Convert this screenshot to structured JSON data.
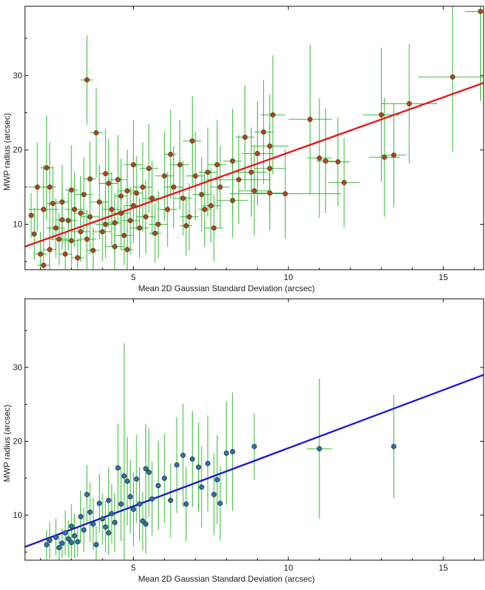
{
  "chart_data": [
    {
      "type": "scatter",
      "panel": "top",
      "xlabel": "Mean 2D Gaussian Standard Deviation (arcsec)",
      "ylabel": "MWP radius (arcsec)",
      "xlim": [
        1.5,
        16.3
      ],
      "ylim": [
        3.9,
        39.3
      ],
      "xticks": [
        5,
        10,
        15
      ],
      "yticks": [
        10,
        20,
        30
      ],
      "marker_color": "#c0392b",
      "marker_edge": "#3a5f10",
      "errorbar_color": "#2bb52b",
      "fit_color": "#e8141b",
      "fit_line": [
        [
          1.5,
          7.0
        ],
        [
          16.3,
          29.0
        ]
      ],
      "points": [
        [
          1.7,
          11.2,
          0,
          3.0
        ],
        [
          1.8,
          8.7,
          0,
          3.5
        ],
        [
          1.9,
          15.0,
          0.3,
          6.0
        ],
        [
          2.0,
          6.0,
          0.2,
          3.0
        ],
        [
          2.1,
          12.0,
          0.5,
          6.0
        ],
        [
          2.1,
          4.5,
          0.2,
          2.0
        ],
        [
          2.2,
          17.6,
          0.2,
          7.0
        ],
        [
          2.3,
          15.0,
          0.2,
          6.0
        ],
        [
          2.3,
          6.6,
          0.2,
          3.0
        ],
        [
          2.5,
          9.5,
          0.3,
          4.0
        ],
        [
          2.6,
          8.0,
          0.3,
          3.5
        ],
        [
          2.7,
          13.0,
          0.2,
          5.0
        ],
        [
          2.8,
          6.0,
          0.2,
          3.0
        ],
        [
          2.9,
          10.5,
          0.3,
          4.0
        ],
        [
          3.0,
          7.8,
          0.3,
          4.0
        ],
        [
          3.1,
          12.0,
          0.3,
          5.0
        ],
        [
          3.2,
          5.5,
          0.2,
          2.5
        ],
        [
          3.3,
          9.0,
          0.3,
          4.0
        ],
        [
          3.4,
          14.0,
          0.3,
          5.0
        ],
        [
          3.5,
          29.4,
          0.2,
          6.0
        ],
        [
          3.5,
          8.0,
          0.3,
          4.0
        ],
        [
          3.6,
          11.0,
          0.3,
          5.0
        ],
        [
          3.7,
          6.5,
          0.2,
          3.0
        ],
        [
          3.8,
          22.3,
          0.2,
          6.0
        ],
        [
          3.9,
          13.0,
          0.3,
          5.0
        ],
        [
          4.0,
          9.0,
          0.3,
          4.0
        ],
        [
          4.1,
          10.0,
          0.3,
          4.5
        ],
        [
          4.2,
          15.5,
          0.3,
          6.0
        ],
        [
          4.3,
          12.0,
          0.3,
          5.0
        ],
        [
          4.4,
          7.0,
          0.3,
          4.0
        ],
        [
          4.5,
          16.0,
          0.3,
          6.0
        ],
        [
          4.6,
          11.5,
          0.3,
          5.0
        ],
        [
          4.7,
          8.5,
          0.3,
          4.0
        ],
        [
          4.8,
          14.5,
          0.3,
          5.5
        ],
        [
          4.9,
          10.5,
          0.3,
          4.5
        ],
        [
          5.0,
          18.0,
          0.3,
          6.0
        ],
        [
          5.0,
          12.5,
          0.3,
          5.0
        ],
        [
          5.2,
          9.5,
          0.3,
          4.0
        ],
        [
          5.3,
          15.0,
          0.3,
          6.0
        ],
        [
          5.4,
          11.0,
          0.3,
          5.0
        ],
        [
          5.5,
          17.5,
          0.3,
          6.0
        ],
        [
          5.6,
          13.5,
          0.3,
          5.0
        ],
        [
          5.8,
          10.0,
          0.3,
          4.5
        ],
        [
          6.0,
          16.5,
          0.3,
          6.0
        ],
        [
          6.1,
          12.0,
          0.3,
          5.0
        ],
        [
          6.3,
          15.0,
          0.3,
          5.5
        ],
        [
          6.5,
          18.0,
          0.3,
          6.0
        ],
        [
          6.6,
          13.5,
          0.3,
          5.0
        ],
        [
          6.8,
          11.0,
          0.3,
          4.5
        ],
        [
          6.9,
          21.2,
          0.3,
          6.0
        ],
        [
          7.0,
          16.5,
          0.3,
          6.0
        ],
        [
          7.2,
          14.0,
          0.3,
          5.0
        ],
        [
          7.4,
          17.0,
          0.3,
          6.0
        ],
        [
          7.5,
          12.5,
          0.3,
          5.0
        ],
        [
          7.6,
          9.5,
          0.3,
          4.5
        ],
        [
          7.7,
          18.0,
          0.3,
          6.0
        ],
        [
          7.8,
          15.0,
          0.3,
          5.5
        ],
        [
          8.2,
          18.5,
          0.3,
          7.0
        ],
        [
          8.2,
          13.2,
          0.5,
          5.0
        ],
        [
          8.4,
          16.0,
          1.0,
          6.0
        ],
        [
          8.6,
          21.7,
          0.3,
          7.0
        ],
        [
          8.8,
          17.0,
          0.5,
          6.0
        ],
        [
          8.9,
          14.5,
          0.5,
          6.0
        ],
        [
          9.0,
          19.5,
          0.5,
          7.0
        ],
        [
          9.2,
          22.4,
          0.3,
          7.0
        ],
        [
          9.4,
          20.5,
          0.6,
          7.0
        ],
        [
          9.4,
          17.5,
          0.5,
          6.0
        ],
        [
          9.4,
          14.2,
          0.5,
          5.0
        ],
        [
          9.5,
          24.7,
          0.4,
          8.0
        ],
        [
          9.9,
          14.1,
          1.8,
          6.0
        ],
        [
          10.7,
          24.1,
          0.7,
          10.0
        ],
        [
          11.0,
          18.9,
          0.4,
          8.0
        ],
        [
          11.2,
          18.5,
          0.3,
          7.0
        ],
        [
          11.6,
          18.4,
          0.4,
          6.0
        ],
        [
          11.8,
          15.6,
          0.5,
          6.0
        ],
        [
          13.0,
          24.7,
          0.6,
          9.0
        ],
        [
          13.1,
          19.0,
          0.5,
          8.0
        ],
        [
          13.4,
          19.3,
          0.4,
          7.0
        ],
        [
          13.9,
          26.2,
          0.9,
          8.0
        ],
        [
          15.3,
          29.8,
          1.1,
          10.0
        ],
        [
          16.2,
          38.6,
          0.5,
          12.0
        ],
        [
          4.1,
          16.8,
          0.2,
          6.0
        ],
        [
          4.4,
          10.2,
          0.2,
          4.0
        ],
        [
          2.4,
          12.8,
          0.2,
          5.0
        ],
        [
          3.0,
          14.6,
          0.2,
          6.0
        ],
        [
          5.7,
          8.8,
          0.2,
          4.0
        ],
        [
          6.2,
          19.4,
          0.2,
          6.0
        ],
        [
          6.7,
          9.8,
          0.2,
          4.0
        ],
        [
          3.6,
          16.1,
          0.2,
          5.0
        ],
        [
          4.8,
          6.6,
          0.2,
          3.0
        ],
        [
          2.7,
          10.6,
          0.2,
          4.0
        ],
        [
          5.1,
          14.2,
          0.2,
          5.0
        ],
        [
          7.3,
          12.0,
          0.2,
          5.0
        ],
        [
          3.3,
          11.5,
          0.2,
          5.0
        ],
        [
          4.6,
          13.8,
          0.2,
          5.0
        ]
      ]
    },
    {
      "type": "scatter",
      "panel": "bottom",
      "xlabel": "Mean 2D Gaussian Standard Deviation (arcsec)",
      "ylabel": "MWP radius (arcsec)",
      "xlim": [
        1.5,
        16.3
      ],
      "ylim": [
        3.9,
        39.3
      ],
      "xticks": [
        5,
        10,
        15
      ],
      "yticks": [
        10,
        20,
        30
      ],
      "marker_color": "#2e6fbd",
      "marker_edge": "#1a3f2a",
      "errorbar_color": "#2bb52b",
      "fit_color": "#1a1adc",
      "fit_line": [
        [
          1.5,
          5.7
        ],
        [
          16.3,
          29.0
        ]
      ],
      "points": [
        [
          2.2,
          6.0,
          0,
          2.0
        ],
        [
          2.3,
          6.6,
          0,
          2.5
        ],
        [
          2.5,
          7.0,
          0,
          2.5
        ],
        [
          2.7,
          6.2,
          0,
          2.0
        ],
        [
          2.8,
          7.6,
          0,
          3.0
        ],
        [
          2.9,
          6.8,
          0,
          2.5
        ],
        [
          3.0,
          8.5,
          0,
          3.0
        ],
        [
          3.1,
          7.2,
          0,
          3.0
        ],
        [
          3.2,
          6.4,
          0,
          2.0
        ],
        [
          3.3,
          9.8,
          0,
          3.5
        ],
        [
          3.4,
          8.0,
          0,
          3.0
        ],
        [
          3.5,
          12.8,
          0,
          4.0
        ],
        [
          3.6,
          10.4,
          0,
          4.0
        ],
        [
          3.7,
          8.8,
          0,
          3.5
        ],
        [
          3.8,
          6.0,
          0,
          2.5
        ],
        [
          3.9,
          11.6,
          0,
          4.0
        ],
        [
          4.0,
          9.5,
          0,
          3.5
        ],
        [
          4.1,
          8.4,
          0,
          3.5
        ],
        [
          4.2,
          12.0,
          0,
          4.5
        ],
        [
          4.3,
          10.2,
          0,
          4.0
        ],
        [
          4.4,
          9.0,
          0,
          4.0
        ],
        [
          4.5,
          16.4,
          0,
          6.0
        ],
        [
          4.6,
          11.5,
          0,
          5.0
        ],
        [
          4.7,
          15.3,
          0,
          18.0
        ],
        [
          4.8,
          14.6,
          0,
          6.0
        ],
        [
          4.9,
          12.5,
          0,
          5.0
        ],
        [
          5.0,
          10.8,
          0,
          5.0
        ],
        [
          5.1,
          14.9,
          0,
          6.0
        ],
        [
          5.2,
          11.5,
          0,
          5.0
        ],
        [
          5.3,
          9.2,
          0,
          4.0
        ],
        [
          5.4,
          16.3,
          0,
          6.0
        ],
        [
          5.5,
          15.8,
          0,
          6.0
        ],
        [
          5.6,
          12.2,
          0,
          5.0
        ],
        [
          5.8,
          14.0,
          0,
          6.0
        ],
        [
          6.0,
          15.0,
          0,
          6.0
        ],
        [
          6.2,
          12.0,
          0,
          5.0
        ],
        [
          6.4,
          16.8,
          0,
          6.5
        ],
        [
          6.6,
          18.1,
          0,
          7.0
        ],
        [
          6.7,
          11.5,
          0,
          5.0
        ],
        [
          6.9,
          17.6,
          0,
          6.5
        ],
        [
          7.1,
          16.5,
          0,
          6.0
        ],
        [
          7.2,
          13.8,
          0,
          5.5
        ],
        [
          7.4,
          17.0,
          0,
          6.5
        ],
        [
          7.6,
          12.8,
          0,
          5.5
        ],
        [
          7.7,
          14.8,
          0,
          6.0
        ],
        [
          7.8,
          11.6,
          0,
          5.0
        ],
        [
          8.0,
          18.4,
          0,
          7.0
        ],
        [
          8.2,
          18.6,
          0,
          8.0
        ],
        [
          8.9,
          19.3,
          0,
          4.5
        ],
        [
          11.0,
          19.0,
          0.4,
          9.5
        ],
        [
          13.4,
          19.3,
          0,
          7.0
        ],
        [
          2.6,
          5.6,
          0,
          2.0
        ],
        [
          3.0,
          6.3,
          0,
          2.0
        ],
        [
          4.2,
          7.6,
          0,
          3.0
        ],
        [
          5.4,
          8.8,
          0,
          4.0
        ]
      ]
    }
  ]
}
